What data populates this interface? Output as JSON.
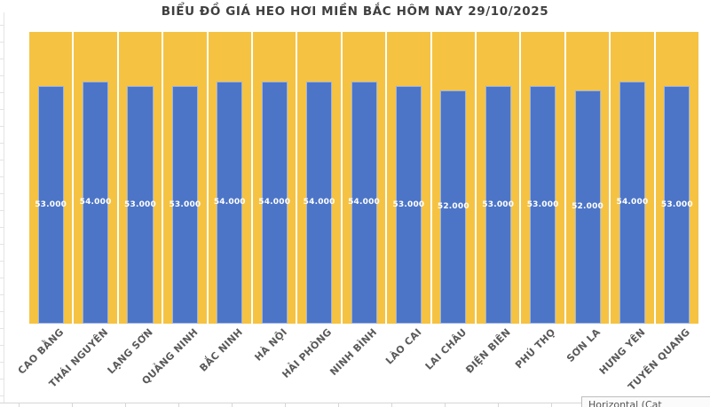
{
  "title": "BIỂU ĐỒ GIÁ HEO HƠI MIỀN BẮC HÔM NAY 29/10/2025",
  "tooltip": {
    "text": "Horizontal (Cat"
  },
  "colors": {
    "bar": "#4C75C7",
    "plot_background": "#F5C242",
    "cell_separator": "#FFFFFF",
    "title_text": "#3F3F3F",
    "category_label_text": "#595959",
    "value_label_text": "#FFFFFF",
    "sheet_gridline": "#D6D6D6"
  },
  "chart_data": {
    "type": "bar",
    "title": "BIỂU ĐỒ GIÁ HEO HƠI MIỀN BẮC HÔM NAY 29/10/2025",
    "categories": [
      "CAO BẰNG",
      "THÁI NGUYÊN",
      "LẠNG SƠN",
      "QUẢNG NINH",
      "BẮC NINH",
      "HÀ NỘI",
      "HẢI PHÒNG",
      "NINH BÌNH",
      "LÀO CAI",
      "LAI CHÂU",
      "ĐIỆN BIÊN",
      "PHÚ THỌ",
      "SƠN LA",
      "HƯNG YÊN",
      "TUYÊN QUANG"
    ],
    "values": [
      53000,
      54000,
      53000,
      53000,
      54000,
      54000,
      54000,
      54000,
      53000,
      52000,
      53000,
      53000,
      52000,
      54000,
      53000
    ],
    "value_labels": [
      "53.000",
      "54.000",
      "53.000",
      "53.000",
      "54.000",
      "54.000",
      "54.000",
      "54.000",
      "53.000",
      "52.000",
      "53.000",
      "53.000",
      "52.000",
      "54.000",
      "53.000"
    ],
    "xlabel": "",
    "ylabel": "",
    "ylim": [
      0,
      65000
    ],
    "value_axis_visible": false,
    "legend": "none",
    "grid": "white vertical separators between categories",
    "label_position": "inside-center",
    "category_label_rotation": -45
  }
}
